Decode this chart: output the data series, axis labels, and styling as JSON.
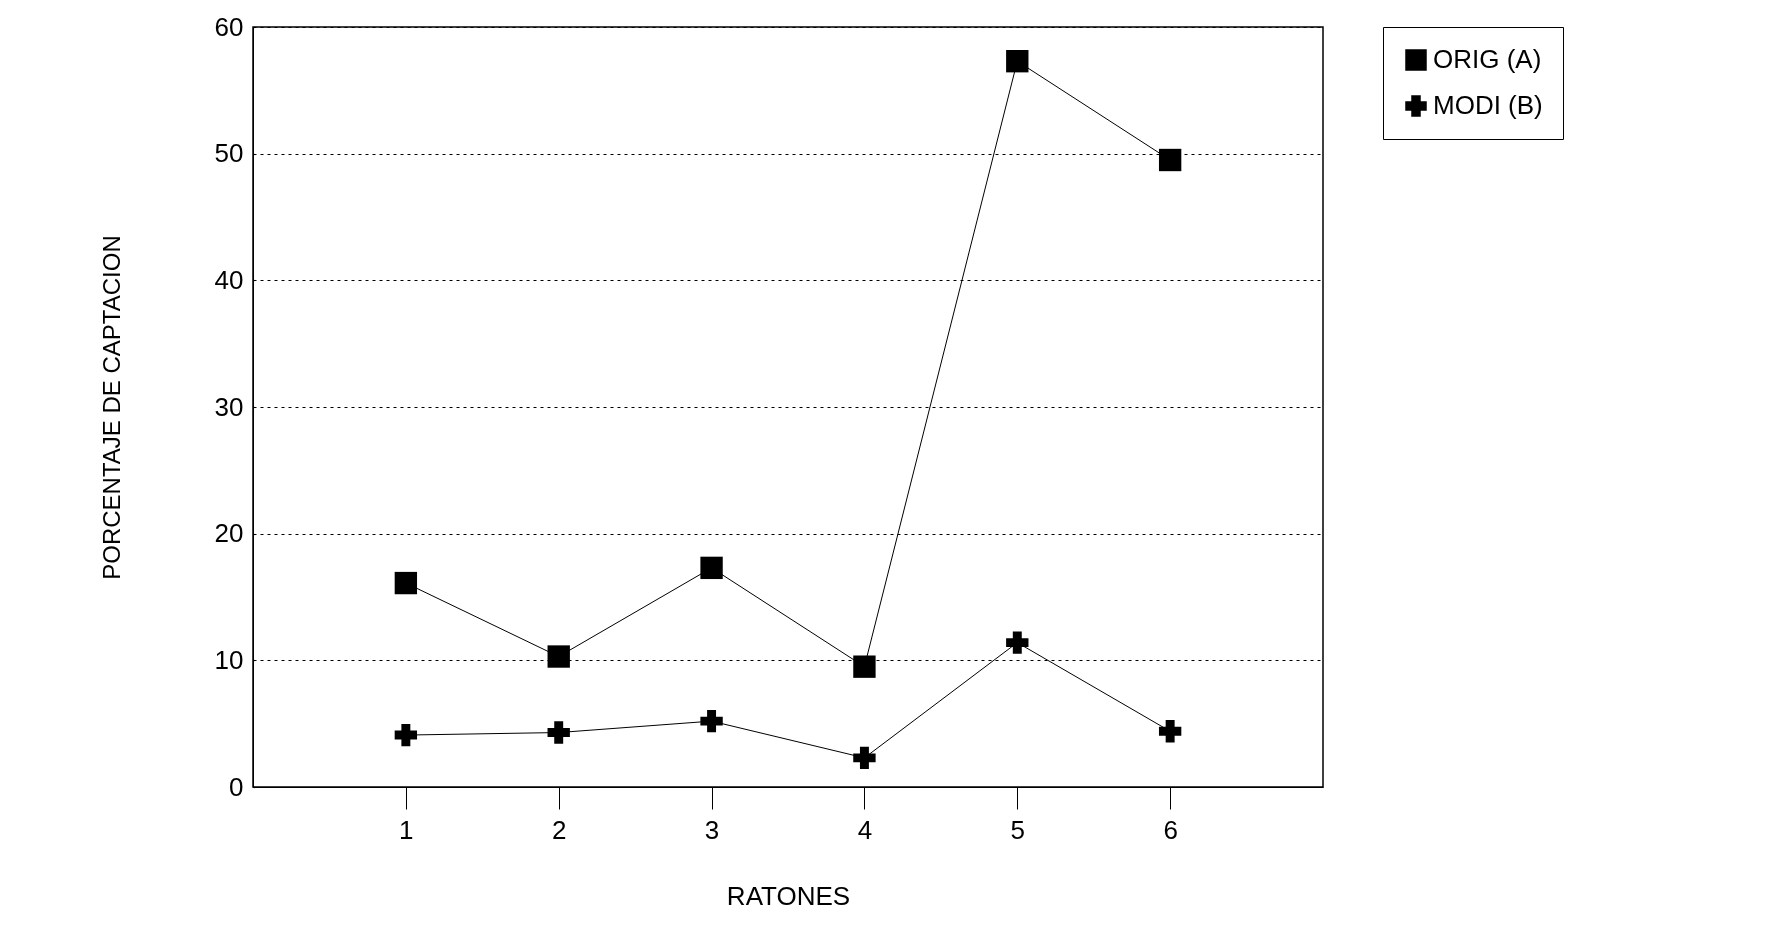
{
  "chart_data": {
    "type": "line",
    "xlabel": "RATONES",
    "ylabel": "PORCENTAJE DE CAPTACION",
    "x": [
      1,
      2,
      3,
      4,
      5,
      6
    ],
    "xlim": [
      0,
      7
    ],
    "xticks": [
      1,
      2,
      3,
      4,
      5,
      6
    ],
    "ylim": [
      0,
      60
    ],
    "yticks": [
      0,
      10,
      20,
      30,
      40,
      50,
      60
    ],
    "series": [
      {
        "name": "ORIG (A)",
        "color": "#000000",
        "marker": "square",
        "values": [
          16.1,
          10.3,
          17.3,
          9.5,
          57.3,
          49.5
        ]
      },
      {
        "name": "MODI (B)",
        "color": "#000000",
        "marker": "cross",
        "values": [
          4.1,
          4.3,
          5.2,
          2.3,
          11.4,
          4.4
        ]
      }
    ],
    "grid": "y",
    "legend": "top right",
    "line_style": "solid"
  }
}
